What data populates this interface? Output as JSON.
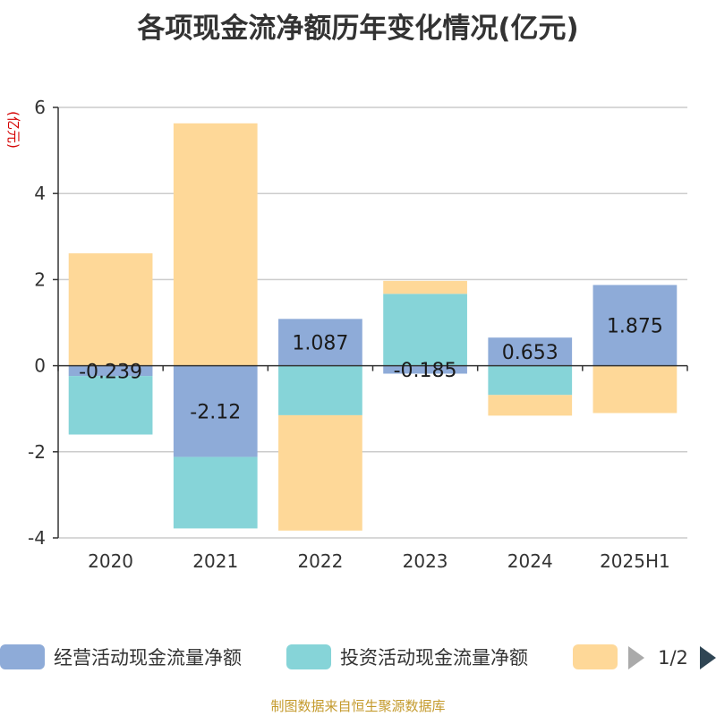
{
  "chart_data": {
    "type": "bar",
    "stacked": true,
    "title": "各项现金流净额历年变化情况(亿元)",
    "ylabel": "(亿元)",
    "categories": [
      "2020",
      "2021",
      "2022",
      "2023",
      "2024",
      "2025H1"
    ],
    "ylim": [
      -4,
      6
    ],
    "yticks": [
      -4,
      -2,
      0,
      2,
      4,
      6
    ],
    "grid": true,
    "series": [
      {
        "name": "经营活动现金流量净额",
        "color": "#8eabd8",
        "values": [
          -0.239,
          -2.12,
          1.087,
          -0.185,
          0.653,
          1.875
        ],
        "show_labels": true
      },
      {
        "name": "投资活动现金流量净额",
        "color": "#86d4d8",
        "values": [
          -1.36,
          -1.66,
          -1.15,
          1.67,
          -0.68,
          0.0
        ],
        "show_labels": false
      },
      {
        "name": "",
        "color": "#fed898",
        "values": [
          2.61,
          5.63,
          -2.68,
          0.3,
          -0.48,
          -1.1
        ],
        "show_labels": false
      }
    ],
    "legend": {
      "position": "bottom",
      "page": "1/2"
    }
  },
  "source": "制图数据来自恒生聚源数据库"
}
